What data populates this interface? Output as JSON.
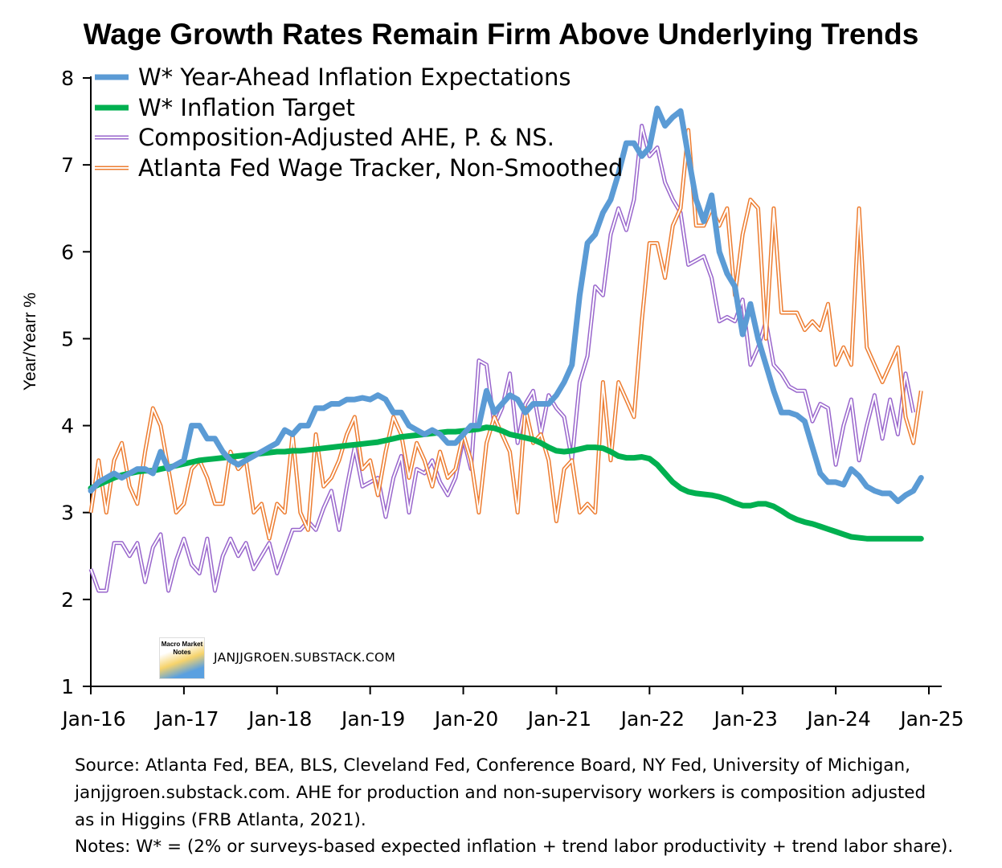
{
  "chart_data": {
    "type": "line",
    "title": "Wage Growth Rates Remain Firm Above Underlying Trends",
    "ylabel": "Year/Yearr %",
    "xlabel": "",
    "ylim": [
      1,
      8
    ],
    "yticks": [
      "1",
      "2",
      "3",
      "4",
      "5",
      "6",
      "7",
      "8"
    ],
    "xticks": [
      "Jan-16",
      "Jan-17",
      "Jan-18",
      "Jan-19",
      "Jan-20",
      "Jan-21",
      "Jan-22",
      "Jan-23",
      "Jan-24",
      "Jan-25"
    ],
    "x_start": "Jan-16",
    "x_frequency": "monthly",
    "legend_position": "top-left",
    "series": [
      {
        "name": "W* Year-Ahead Inflation Expectations",
        "color": "#5b9bd5",
        "style": "thick",
        "values": [
          3.25,
          3.35,
          3.4,
          3.45,
          3.4,
          3.45,
          3.5,
          3.5,
          3.45,
          3.7,
          3.5,
          3.55,
          3.6,
          4.0,
          4.0,
          3.85,
          3.85,
          3.7,
          3.6,
          3.55,
          3.6,
          3.65,
          3.7,
          3.75,
          3.8,
          3.95,
          3.9,
          4.0,
          4.0,
          4.2,
          4.2,
          4.25,
          4.25,
          4.3,
          4.3,
          4.32,
          4.3,
          4.35,
          4.3,
          4.15,
          4.15,
          4.0,
          3.95,
          3.9,
          3.95,
          3.9,
          3.8,
          3.8,
          3.9,
          4.0,
          4.0,
          4.4,
          4.15,
          4.25,
          4.35,
          4.3,
          4.15,
          4.25,
          4.25,
          4.25,
          4.35,
          4.5,
          4.7,
          5.5,
          6.1,
          6.2,
          6.45,
          6.6,
          6.9,
          7.25,
          7.25,
          7.1,
          7.2,
          7.65,
          7.45,
          7.55,
          7.62,
          7.1,
          6.6,
          6.35,
          6.65,
          6.0,
          5.75,
          5.6,
          5.05,
          5.4,
          5.0,
          4.7,
          4.4,
          4.15,
          4.15,
          4.12,
          4.05,
          3.75,
          3.45,
          3.35,
          3.35,
          3.32,
          3.5,
          3.42,
          3.3,
          3.25,
          3.22,
          3.22,
          3.13,
          3.2,
          3.25,
          3.4
        ]
      },
      {
        "name": "W* Inflation Target",
        "color": "#00b050",
        "style": "thick",
        "values": [
          3.28,
          3.32,
          3.36,
          3.4,
          3.43,
          3.45,
          3.47,
          3.48,
          3.48,
          3.5,
          3.52,
          3.54,
          3.56,
          3.58,
          3.6,
          3.61,
          3.62,
          3.63,
          3.64,
          3.65,
          3.66,
          3.67,
          3.68,
          3.69,
          3.7,
          3.7,
          3.71,
          3.71,
          3.72,
          3.73,
          3.74,
          3.75,
          3.76,
          3.77,
          3.78,
          3.79,
          3.8,
          3.81,
          3.83,
          3.85,
          3.87,
          3.88,
          3.89,
          3.9,
          3.91,
          3.92,
          3.93,
          3.93,
          3.94,
          3.95,
          3.96,
          3.98,
          3.97,
          3.94,
          3.9,
          3.88,
          3.86,
          3.84,
          3.8,
          3.75,
          3.71,
          3.7,
          3.71,
          3.73,
          3.75,
          3.75,
          3.74,
          3.7,
          3.65,
          3.63,
          3.63,
          3.64,
          3.62,
          3.55,
          3.45,
          3.35,
          3.28,
          3.24,
          3.22,
          3.21,
          3.2,
          3.18,
          3.15,
          3.11,
          3.08,
          3.08,
          3.1,
          3.1,
          3.07,
          3.02,
          2.96,
          2.92,
          2.89,
          2.87,
          2.84,
          2.81,
          2.78,
          2.75,
          2.72,
          2.71,
          2.7,
          2.7,
          2.7,
          2.7,
          2.7,
          2.7,
          2.7,
          2.7
        ]
      },
      {
        "name": "Composition-Adjusted AHE, P. & NS.",
        "color": "#9966cc",
        "style": "double",
        "values": [
          2.35,
          2.1,
          2.1,
          2.65,
          2.65,
          2.5,
          2.65,
          2.2,
          2.6,
          2.75,
          2.1,
          2.45,
          2.7,
          2.4,
          2.3,
          2.7,
          2.1,
          2.5,
          2.7,
          2.5,
          2.65,
          2.35,
          2.5,
          2.65,
          2.3,
          2.55,
          2.8,
          2.8,
          2.9,
          2.8,
          3.05,
          3.25,
          2.8,
          3.3,
          3.75,
          3.3,
          3.35,
          3.4,
          2.95,
          3.4,
          3.65,
          3.0,
          3.5,
          3.45,
          3.6,
          3.35,
          3.2,
          3.4,
          3.85,
          3.5,
          4.75,
          4.7,
          4.0,
          4.2,
          4.6,
          3.8,
          4.25,
          4.4,
          3.9,
          4.35,
          4.2,
          4.1,
          3.6,
          4.5,
          4.8,
          5.6,
          5.5,
          6.2,
          6.5,
          6.25,
          6.6,
          7.45,
          7.1,
          7.2,
          6.8,
          6.6,
          6.45,
          5.85,
          5.9,
          5.95,
          5.7,
          5.2,
          5.25,
          5.2,
          5.45,
          4.7,
          4.9,
          5.2,
          4.7,
          4.6,
          4.45,
          4.4,
          4.4,
          4.05,
          4.25,
          4.2,
          3.55,
          4.0,
          4.3,
          3.6,
          4.0,
          4.35,
          3.85,
          4.3,
          3.9,
          4.6,
          4.15
        ]
      },
      {
        "name": "Atlanta Fed Wage Tracker, Non-Smoothed",
        "color": "#ed7d31",
        "style": "double",
        "values": [
          3.0,
          3.6,
          3.0,
          3.6,
          3.8,
          3.3,
          3.1,
          3.7,
          4.2,
          4.0,
          3.5,
          3.0,
          3.1,
          3.5,
          3.6,
          3.4,
          3.1,
          3.1,
          3.7,
          3.5,
          3.6,
          3.0,
          3.1,
          2.7,
          3.1,
          3.0,
          3.9,
          3.0,
          2.8,
          3.9,
          3.3,
          3.4,
          3.6,
          3.9,
          4.1,
          3.5,
          3.6,
          3.2,
          3.7,
          4.1,
          3.9,
          3.4,
          3.8,
          3.6,
          3.3,
          3.7,
          3.4,
          3.5,
          3.9,
          3.6,
          3.0,
          3.8,
          4.1,
          3.9,
          3.7,
          3.0,
          4.2,
          3.8,
          3.9,
          3.6,
          2.9,
          3.5,
          3.6,
          3.0,
          3.1,
          3.0,
          4.5,
          3.6,
          4.5,
          4.3,
          4.1,
          5.2,
          6.1,
          6.1,
          5.7,
          6.3,
          6.5,
          7.4,
          6.3,
          6.3,
          6.5,
          6.3,
          6.5,
          5.5,
          6.2,
          6.6,
          6.5,
          5.0,
          6.5,
          5.3,
          5.3,
          5.3,
          5.1,
          5.2,
          5.1,
          5.4,
          4.7,
          4.9,
          4.7,
          6.5,
          4.9,
          4.7,
          4.5,
          4.7,
          4.9,
          4.1,
          3.8,
          4.4
        ]
      }
    ]
  },
  "watermark": {
    "logo_text": "Macro Market Notes",
    "url": "JANJJGROEN.SUBSTACK.COM"
  },
  "footer": {
    "lines": [
      "Source: Atlanta Fed, BEA, BLS, Cleveland Fed, Conference Board, NY Fed, University of Michigan,",
      "janjjgroen.substack.com. AHE for production and non-supervisory workers is composition adjusted",
      "as in Higgins (FRB Atlanta, 2021).",
      "Notes: W* = (2% or surveys-based expected inflation + trend labor productivity + trend labor share)."
    ]
  }
}
